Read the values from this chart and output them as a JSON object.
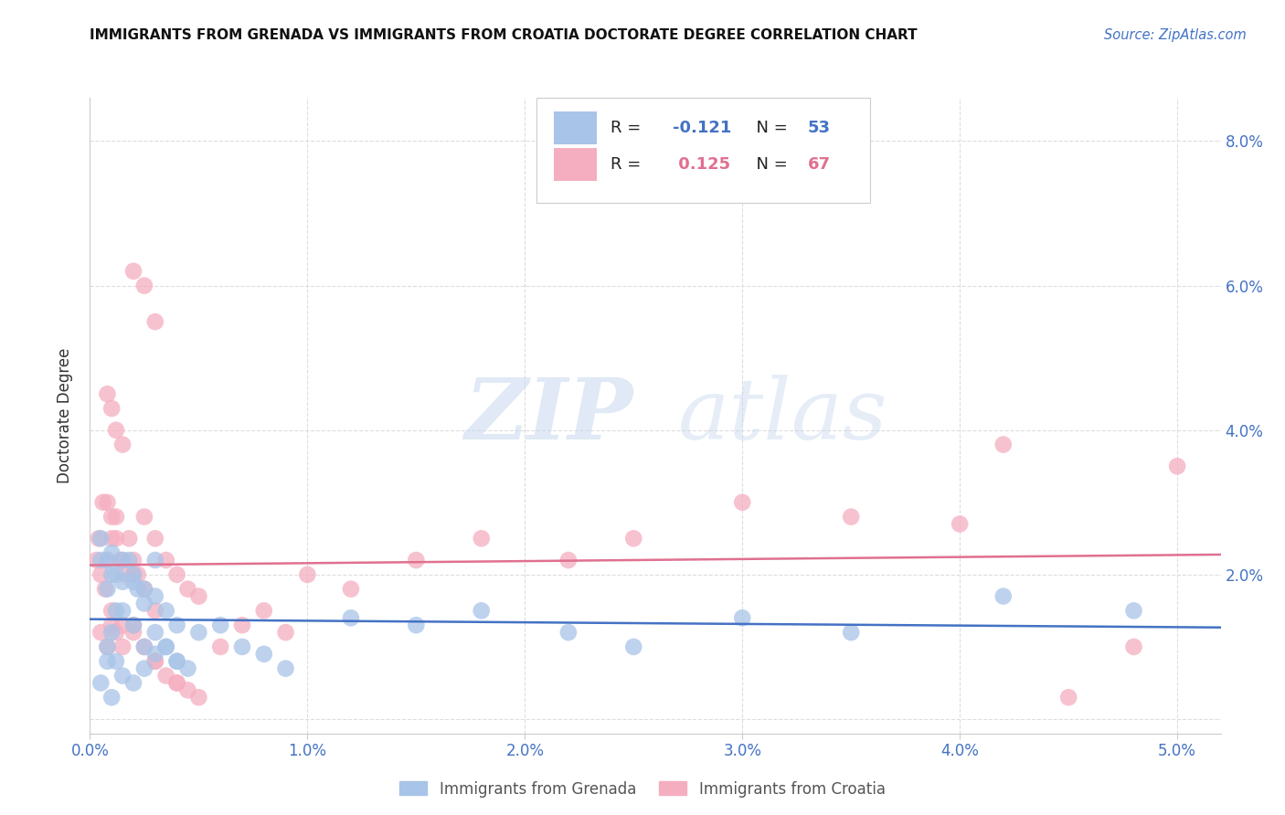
{
  "title": "IMMIGRANTS FROM GRENADA VS IMMIGRANTS FROM CROATIA DOCTORATE DEGREE CORRELATION CHART",
  "source": "Source: ZipAtlas.com",
  "ylabel": "Doctorate Degree",
  "ytick_vals": [
    0.0,
    0.02,
    0.04,
    0.06,
    0.08
  ],
  "ytick_labels": [
    "",
    "2.0%",
    "4.0%",
    "6.0%",
    "8.0%"
  ],
  "xtick_vals": [
    0.0,
    0.01,
    0.02,
    0.03,
    0.04,
    0.05
  ],
  "xtick_labels": [
    "0.0%",
    "1.0%",
    "2.0%",
    "3.0%",
    "4.0%",
    "5.0%"
  ],
  "xlim": [
    0.0,
    0.052
  ],
  "ylim": [
    -0.002,
    0.086
  ],
  "grenada_R": -0.121,
  "grenada_N": 53,
  "croatia_R": 0.125,
  "croatia_N": 67,
  "grenada_color": "#a8c4e8",
  "croatia_color": "#f5aec0",
  "grenada_line_color": "#4472c4",
  "croatia_line_color": "#e07090",
  "legend_label_grenada": "Immigrants from Grenada",
  "legend_label_croatia": "Immigrants from Croatia",
  "watermark_zip": "ZIP",
  "watermark_atlas": "atlas",
  "background_color": "#ffffff",
  "tick_color": "#4472c4",
  "grid_color": "#dddddd",
  "grenada_x": [
    0.0005,
    0.0008,
    0.001,
    0.0012,
    0.0015,
    0.0018,
    0.002,
    0.0022,
    0.0025,
    0.003,
    0.0008,
    0.001,
    0.0012,
    0.0015,
    0.002,
    0.0025,
    0.003,
    0.0035,
    0.004,
    0.0045,
    0.0005,
    0.0008,
    0.001,
    0.0012,
    0.0015,
    0.002,
    0.0025,
    0.003,
    0.0035,
    0.004,
    0.0005,
    0.0008,
    0.001,
    0.0015,
    0.002,
    0.0025,
    0.003,
    0.0035,
    0.004,
    0.005,
    0.006,
    0.007,
    0.008,
    0.009,
    0.012,
    0.015,
    0.018,
    0.022,
    0.025,
    0.03,
    0.035,
    0.042,
    0.048
  ],
  "grenada_y": [
    0.022,
    0.018,
    0.02,
    0.015,
    0.019,
    0.022,
    0.02,
    0.018,
    0.016,
    0.022,
    0.01,
    0.012,
    0.008,
    0.015,
    0.013,
    0.01,
    0.012,
    0.01,
    0.008,
    0.007,
    0.025,
    0.022,
    0.023,
    0.02,
    0.022,
    0.019,
    0.018,
    0.017,
    0.015,
    0.013,
    0.005,
    0.008,
    0.003,
    0.006,
    0.005,
    0.007,
    0.009,
    0.01,
    0.008,
    0.012,
    0.013,
    0.01,
    0.009,
    0.007,
    0.014,
    0.013,
    0.015,
    0.012,
    0.01,
    0.014,
    0.012,
    0.017,
    0.015
  ],
  "croatia_x": [
    0.0004,
    0.0006,
    0.0008,
    0.001,
    0.0012,
    0.0014,
    0.0016,
    0.0018,
    0.002,
    0.0022,
    0.0025,
    0.003,
    0.0035,
    0.004,
    0.0045,
    0.005,
    0.0008,
    0.001,
    0.0012,
    0.0015,
    0.002,
    0.0025,
    0.003,
    0.0008,
    0.001,
    0.0012,
    0.0015,
    0.002,
    0.0025,
    0.003,
    0.0005,
    0.0008,
    0.001,
    0.0012,
    0.0015,
    0.002,
    0.0025,
    0.003,
    0.0035,
    0.004,
    0.0045,
    0.005,
    0.006,
    0.007,
    0.008,
    0.009,
    0.01,
    0.012,
    0.015,
    0.018,
    0.022,
    0.025,
    0.03,
    0.035,
    0.04,
    0.042,
    0.045,
    0.048,
    0.05,
    0.0003,
    0.0005,
    0.0007,
    0.001,
    0.0015,
    0.002,
    0.003,
    0.004
  ],
  "croatia_y": [
    0.025,
    0.03,
    0.022,
    0.025,
    0.028,
    0.022,
    0.02,
    0.025,
    0.022,
    0.02,
    0.028,
    0.025,
    0.022,
    0.02,
    0.018,
    0.017,
    0.045,
    0.043,
    0.04,
    0.038,
    0.062,
    0.06,
    0.055,
    0.03,
    0.028,
    0.025,
    0.022,
    0.02,
    0.018,
    0.015,
    0.012,
    0.01,
    0.013,
    0.012,
    0.01,
    0.013,
    0.01,
    0.008,
    0.006,
    0.005,
    0.004,
    0.003,
    0.01,
    0.013,
    0.015,
    0.012,
    0.02,
    0.018,
    0.022,
    0.025,
    0.022,
    0.025,
    0.03,
    0.028,
    0.027,
    0.038,
    0.003,
    0.01,
    0.035,
    0.022,
    0.02,
    0.018,
    0.015,
    0.013,
    0.012,
    0.008,
    0.005
  ]
}
